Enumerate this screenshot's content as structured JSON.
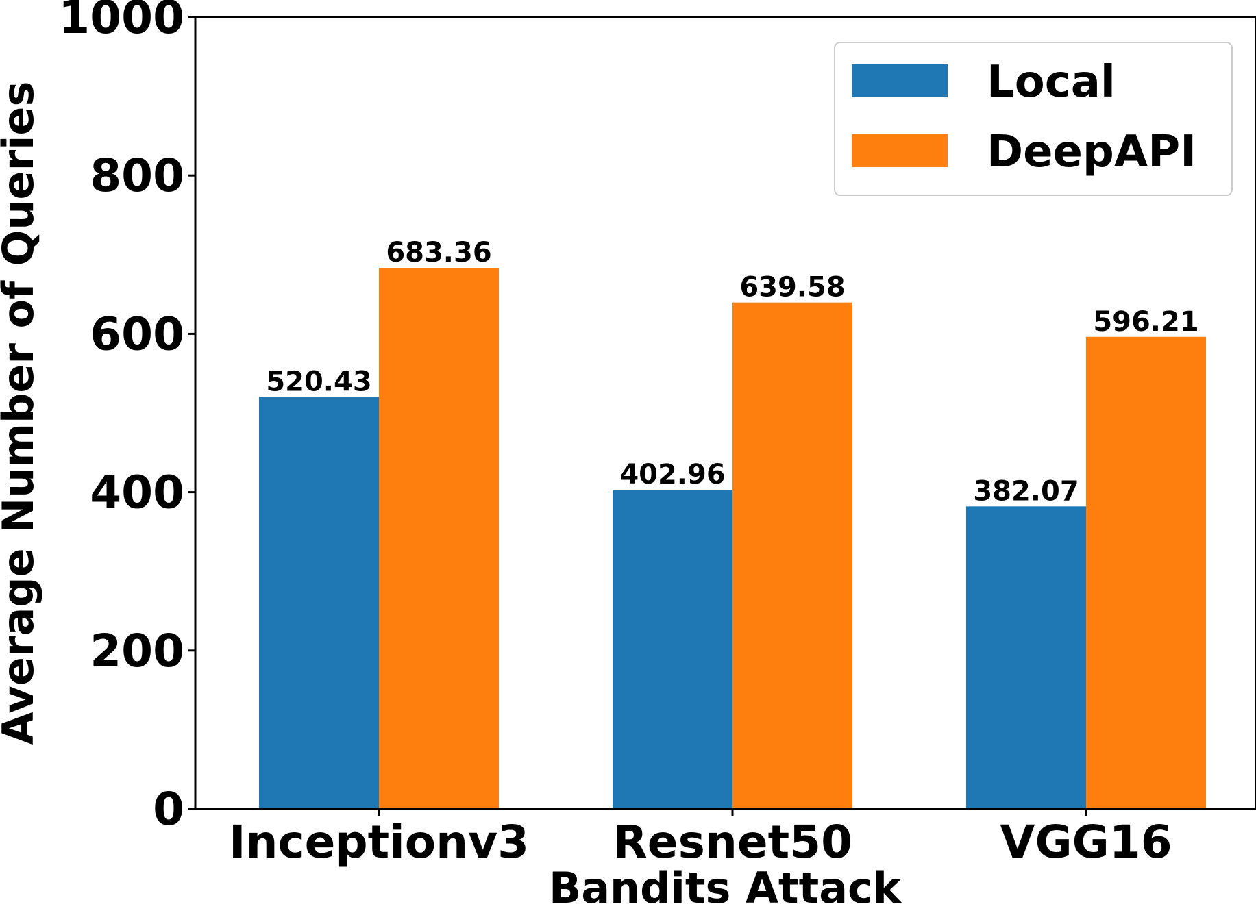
{
  "chart_data": {
    "type": "bar",
    "xlabel": "Bandits Attack",
    "ylabel": "Average Number of Queries",
    "ylim": [
      0,
      1000
    ],
    "yticks": [
      0,
      200,
      400,
      600,
      800,
      1000
    ],
    "categories": [
      "Inceptionv3",
      "Resnet50",
      "VGG16"
    ],
    "series": [
      {
        "name": "Local",
        "color": "#1f77b4",
        "values": [
          520.43,
          402.96,
          382.07
        ],
        "labels": [
          "520.43",
          "402.96",
          "382.07"
        ]
      },
      {
        "name": "DeepAPI",
        "color": "#ff7f0e",
        "values": [
          683.36,
          639.58,
          596.21
        ],
        "labels": [
          "683.36",
          "639.58",
          "596.21"
        ]
      }
    ],
    "legend": "top-right",
    "grid": false
  }
}
